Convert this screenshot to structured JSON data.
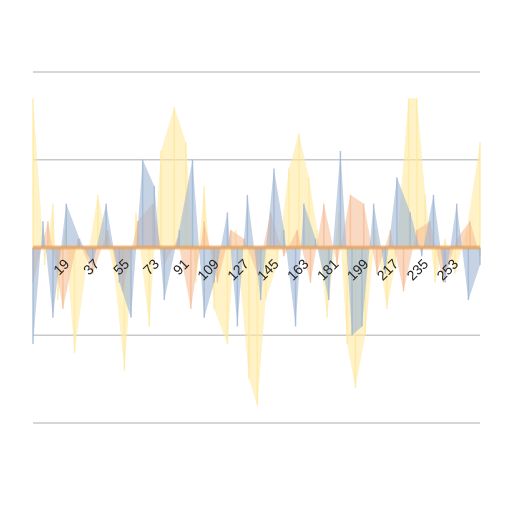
{
  "chart_data": {
    "type": "area",
    "title": "",
    "xlabel": "",
    "ylabel": "",
    "ylim": [
      -100,
      100
    ],
    "grid": true,
    "legend": "none",
    "x_start": 1,
    "x_end": 270,
    "x_tick_labels": [
      "19",
      "37",
      "55",
      "73",
      "91",
      "109",
      "127",
      "145",
      "163",
      "181",
      "199",
      "217",
      "235",
      "253"
    ],
    "series": [
      {
        "color": "#fde9a0",
        "opacity": 0.6,
        "points": [
          [
            1,
            85
          ],
          [
            8,
            -10
          ],
          [
            13,
            25
          ],
          [
            16,
            -30
          ],
          [
            20,
            10
          ],
          [
            26,
            -60
          ],
          [
            34,
            -5
          ],
          [
            40,
            30
          ],
          [
            50,
            -15
          ],
          [
            56,
            -70
          ],
          [
            63,
            20
          ],
          [
            71,
            -45
          ],
          [
            78,
            55
          ],
          [
            86,
            80
          ],
          [
            93,
            60
          ],
          [
            99,
            -20
          ],
          [
            104,
            35
          ],
          [
            110,
            -35
          ],
          [
            118,
            -55
          ],
          [
            123,
            10
          ],
          [
            131,
            -75
          ],
          [
            136,
            -90
          ],
          [
            141,
            -30
          ],
          [
            148,
            -10
          ],
          [
            155,
            45
          ],
          [
            161,
            65
          ],
          [
            167,
            40
          ],
          [
            172,
            10
          ],
          [
            178,
            -40
          ],
          [
            185,
            20
          ],
          [
            190,
            -55
          ],
          [
            195,
            -80
          ],
          [
            201,
            -50
          ],
          [
            207,
            10
          ],
          [
            214,
            -35
          ],
          [
            219,
            -10
          ],
          [
            227,
            85
          ],
          [
            232,
            85
          ],
          [
            237,
            30
          ],
          [
            243,
            -20
          ],
          [
            249,
            5
          ],
          [
            255,
            -15
          ],
          [
            262,
            10
          ],
          [
            270,
            60
          ]
        ]
      },
      {
        "color": "#f5b990",
        "opacity": 0.55,
        "points": [
          [
            1,
            -20
          ],
          [
            10,
            15
          ],
          [
            19,
            -35
          ],
          [
            28,
            5
          ],
          [
            37,
            -15
          ],
          [
            46,
            10
          ],
          [
            55,
            -25
          ],
          [
            64,
            15
          ],
          [
            73,
            25
          ],
          [
            80,
            -10
          ],
          [
            88,
            5
          ],
          [
            96,
            -35
          ],
          [
            104,
            15
          ],
          [
            112,
            -20
          ],
          [
            120,
            10
          ],
          [
            128,
            5
          ],
          [
            136,
            -15
          ],
          [
            144,
            20
          ],
          [
            152,
            -5
          ],
          [
            160,
            10
          ],
          [
            168,
            -20
          ],
          [
            176,
            25
          ],
          [
            184,
            -10
          ],
          [
            192,
            30
          ],
          [
            200,
            25
          ],
          [
            208,
            -15
          ],
          [
            216,
            10
          ],
          [
            224,
            -25
          ],
          [
            232,
            10
          ],
          [
            240,
            15
          ],
          [
            248,
            -20
          ],
          [
            256,
            5
          ],
          [
            264,
            15
          ],
          [
            270,
            -5
          ]
        ]
      },
      {
        "color": "#9fb6d3",
        "opacity": 0.6,
        "points": [
          [
            1,
            -55
          ],
          [
            7,
            15
          ],
          [
            13,
            -40
          ],
          [
            21,
            25
          ],
          [
            29,
            5
          ],
          [
            37,
            -10
          ],
          [
            45,
            25
          ],
          [
            53,
            -20
          ],
          [
            60,
            -40
          ],
          [
            67,
            50
          ],
          [
            74,
            35
          ],
          [
            80,
            -30
          ],
          [
            89,
            10
          ],
          [
            97,
            50
          ],
          [
            104,
            -40
          ],
          [
            110,
            -20
          ],
          [
            118,
            20
          ],
          [
            124,
            -45
          ],
          [
            130,
            30
          ],
          [
            138,
            -30
          ],
          [
            146,
            45
          ],
          [
            152,
            10
          ],
          [
            159,
            -45
          ],
          [
            164,
            25
          ],
          [
            171,
            5
          ],
          [
            179,
            -30
          ],
          [
            186,
            55
          ],
          [
            193,
            -50
          ],
          [
            199,
            -45
          ],
          [
            206,
            25
          ],
          [
            213,
            -15
          ],
          [
            220,
            40
          ],
          [
            228,
            20
          ],
          [
            235,
            -5
          ],
          [
            242,
            30
          ],
          [
            249,
            -20
          ],
          [
            256,
            25
          ],
          [
            263,
            -30
          ],
          [
            270,
            -10
          ]
        ]
      }
    ]
  }
}
